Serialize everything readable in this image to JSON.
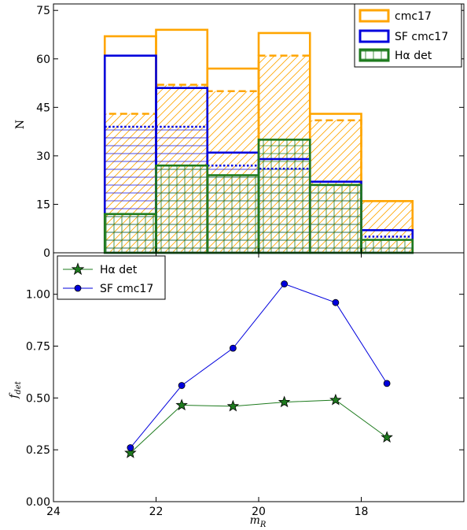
{
  "chart_data": [
    {
      "type": "bar",
      "panel": "top",
      "ylabel": "N",
      "xlim": [
        24,
        16
      ],
      "ylim": [
        0,
        77
      ],
      "yticks": [
        "0",
        "15",
        "30",
        "45",
        "60",
        "75"
      ],
      "bin_edges": [
        23,
        22,
        21,
        20,
        19,
        18,
        17
      ],
      "series": [
        {
          "name": "cmc17",
          "color": "#FFA500",
          "values": [
            67,
            69,
            57,
            68,
            43,
            16
          ]
        },
        {
          "name": "SF cmc17",
          "color": "#0000DD",
          "values": [
            61,
            51,
            31,
            29,
            22,
            7
          ]
        },
        {
          "name": "Hα det",
          "color": "#1E7B1E",
          "values": [
            12,
            27,
            24,
            35,
            21,
            4
          ]
        }
      ],
      "dashed_orange": [
        43,
        52,
        50,
        61,
        41,
        16
      ],
      "dotted_blue": [
        39,
        39,
        27,
        26,
        21,
        5
      ],
      "legend": "top-right"
    },
    {
      "type": "line",
      "panel": "bottom",
      "xlabel": "m_R",
      "ylabel": "f_det",
      "xlim": [
        24,
        16
      ],
      "ylim": [
        0,
        1.2
      ],
      "xticks": [
        "24",
        "22",
        "20",
        "18"
      ],
      "yticks": [
        "0.00",
        "0.25",
        "0.50",
        "0.75",
        "1.00"
      ],
      "x": [
        22.5,
        21.5,
        20.5,
        19.5,
        18.5,
        17.5
      ],
      "series": [
        {
          "name": "Hα det",
          "marker": "star",
          "color": "#1E7B1E",
          "values": [
            0.235,
            0.465,
            0.46,
            0.48,
            0.49,
            0.31
          ]
        },
        {
          "name": "SF cmc17",
          "marker": "circle",
          "color": "#0000DD",
          "values": [
            0.26,
            0.56,
            0.74,
            1.05,
            0.96,
            0.57
          ]
        }
      ],
      "legend": "top-left"
    }
  ]
}
